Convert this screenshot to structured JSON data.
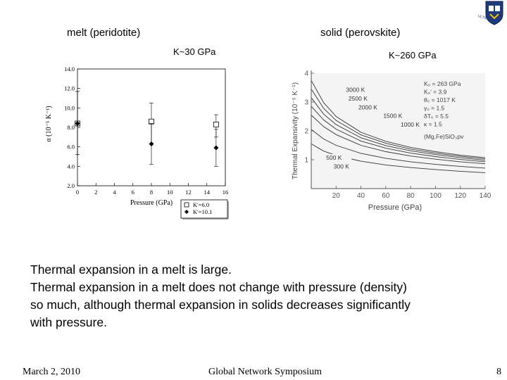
{
  "slide": {
    "label_left": "melt (peridotite)",
    "label_right": "solid (perovskite)",
    "k_left": "K~30 GPa",
    "k_right": "K~260 GPa",
    "paragraph1": "Thermal expansion in a melt is large.",
    "paragraph2_lines": [
      "Thermal expansion in a melt does not change with pressure (density)",
      "so much, although thermal expansion in solids decreases significantly",
      "with pressure."
    ]
  },
  "footer": {
    "date": "March 2, 2010",
    "event": "Global Network Symposium",
    "page": "8"
  },
  "logo": {
    "icon": "university-crest-icon",
    "text": "ULTRAMAN"
  },
  "chart_data": [
    {
      "type": "scatter",
      "title": "",
      "xlabel": "Pressure (GPa)",
      "ylabel": "α (10⁻⁵ K⁻¹)",
      "xlim": [
        0,
        16
      ],
      "ylim": [
        2.0,
        14.0
      ],
      "x_ticks": [
        "0",
        "2",
        "4",
        "6",
        "8",
        "10",
        "12",
        "14",
        "16"
      ],
      "y_ticks": [
        "2.0",
        "4.0",
        "6.0",
        "8.0",
        "10.0",
        "12.0",
        "14.0"
      ],
      "legend": {
        "placement": "bottom-right",
        "entries": [
          "K'=6.0",
          "K'=10.1"
        ]
      },
      "series": [
        {
          "name": "K'=6.0",
          "marker": "open-square",
          "points": [
            [
              0,
              8.4
            ],
            [
              8,
              8.6
            ],
            [
              15,
              8.3
            ]
          ],
          "errors": [
            [
              5.2,
              11.7
            ],
            [
              6.3,
              10.5
            ],
            [
              7.0,
              9.3
            ]
          ]
        },
        {
          "name": "K'=10.1",
          "marker": "filled-diamond",
          "points": [
            [
              0,
              8.4
            ],
            [
              8,
              6.3
            ],
            [
              15,
              5.9
            ]
          ],
          "errors": [
            [
              5.2,
              11.7
            ],
            [
              4.2,
              8.4
            ],
            [
              4.0,
              7.8
            ]
          ]
        }
      ]
    },
    {
      "type": "line",
      "title": "",
      "xlabel": "Pressure (GPa)",
      "ylabel": "Thermal Expansivity (10⁻⁵ K⁻¹)",
      "xlim": [
        0,
        140
      ],
      "ylim": [
        0,
        4
      ],
      "x_ticks": [
        "20",
        "40",
        "60",
        "80",
        "100",
        "120",
        "140"
      ],
      "y_ticks": [
        "1",
        "2",
        "3",
        "4"
      ],
      "annotation_lines": [
        "K₀ = 263 GPa",
        "K₀' = 3.9",
        "θ₀ = 1017 K",
        "γ₀ = 1.5",
        "δT₀ = 5.5",
        "κ = 1.5",
        "(Mg,Fe)SiO₃pv"
      ],
      "series": [
        {
          "name": "300 K",
          "x": [
            0,
            10,
            20,
            40,
            60,
            80,
            100,
            120,
            140
          ],
          "values": [
            1.55,
            1.3,
            1.15,
            0.95,
            0.82,
            0.73,
            0.66,
            0.6,
            0.55
          ]
        },
        {
          "name": "500 K",
          "x": [
            0,
            10,
            20,
            40,
            60,
            80,
            100,
            120,
            140
          ],
          "values": [
            2.05,
            1.72,
            1.5,
            1.22,
            1.05,
            0.93,
            0.84,
            0.77,
            0.71
          ]
        },
        {
          "name": "1000 K",
          "x": [
            0,
            10,
            20,
            40,
            60,
            80,
            100,
            120,
            140
          ],
          "values": [
            2.55,
            2.15,
            1.87,
            1.5,
            1.28,
            1.13,
            1.02,
            0.93,
            0.86
          ]
        },
        {
          "name": "1500 K",
          "x": [
            0,
            10,
            20,
            40,
            60,
            80,
            100,
            120,
            140
          ],
          "values": [
            2.85,
            2.38,
            2.06,
            1.65,
            1.4,
            1.23,
            1.11,
            1.01,
            0.93
          ]
        },
        {
          "name": "2000 K",
          "x": [
            0,
            10,
            20,
            40,
            60,
            80,
            100,
            120,
            140
          ],
          "values": [
            3.15,
            2.58,
            2.22,
            1.76,
            1.49,
            1.31,
            1.18,
            1.07,
            0.98
          ]
        },
        {
          "name": "2500 K",
          "x": [
            0,
            10,
            20,
            40,
            60,
            80,
            100,
            120,
            140
          ],
          "values": [
            3.45,
            2.78,
            2.36,
            1.86,
            1.57,
            1.37,
            1.23,
            1.12,
            1.03
          ]
        },
        {
          "name": "3000 K",
          "x": [
            0,
            10,
            20,
            40,
            60,
            80,
            100,
            120,
            140
          ],
          "values": [
            3.75,
            2.98,
            2.5,
            1.95,
            1.64,
            1.43,
            1.28,
            1.16,
            1.07
          ]
        }
      ]
    }
  ]
}
